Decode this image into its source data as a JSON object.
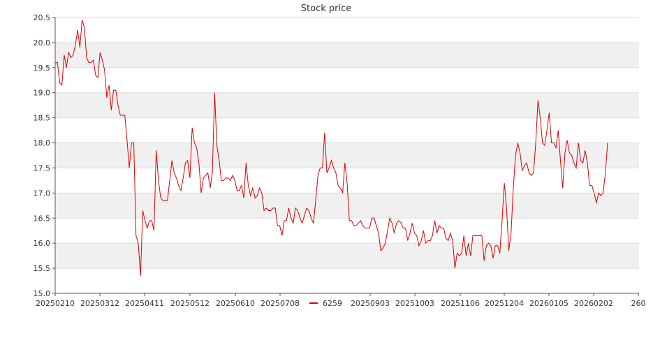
{
  "chart_data": {
    "type": "line",
    "title": "Stock price",
    "xlabel": "",
    "ylabel": "",
    "ylim": [
      15.0,
      20.5
    ],
    "yticks": [
      "15.0",
      "15.5",
      "16.0",
      "16.5",
      "17.0",
      "17.5",
      "18.0",
      "18.5",
      "19.0",
      "19.5",
      "20.0",
      "20.5"
    ],
    "xtick_labels": [
      "20250210",
      "20250312",
      "20250411",
      "20250512",
      "20250610",
      "20250708",
      "20250903",
      "20251003",
      "20251106",
      "20251204",
      "20260105",
      "20260202",
      "260"
    ],
    "grid": true,
    "banded_background": true,
    "legend_position": "bottom",
    "colors": {
      "line": "#dd0000",
      "band": "#f0f0f0",
      "grid": "#dddddd",
      "axis": "#555555"
    },
    "series": [
      {
        "name": "6259",
        "values": [
          19.6,
          19.6,
          19.2,
          19.15,
          19.75,
          19.5,
          19.8,
          19.7,
          19.75,
          19.95,
          20.25,
          19.9,
          20.45,
          20.3,
          19.7,
          19.6,
          19.6,
          19.65,
          19.35,
          19.3,
          19.8,
          19.65,
          19.45,
          18.9,
          19.15,
          18.65,
          19.05,
          19.05,
          18.75,
          18.55,
          18.55,
          18.55,
          18.05,
          17.5,
          18.0,
          18.0,
          16.15,
          16.0,
          15.35,
          16.65,
          16.45,
          16.3,
          16.45,
          16.45,
          16.25,
          17.85,
          17.25,
          16.9,
          16.85,
          16.85,
          16.85,
          17.25,
          17.65,
          17.4,
          17.3,
          17.15,
          17.05,
          17.3,
          17.6,
          17.65,
          17.3,
          18.3,
          18.0,
          17.9,
          17.6,
          17.0,
          17.3,
          17.35,
          17.4,
          17.1,
          17.4,
          19.0,
          17.95,
          17.65,
          17.25,
          17.25,
          17.3,
          17.3,
          17.25,
          17.35,
          17.25,
          17.05,
          17.05,
          17.15,
          16.9,
          17.6,
          17.15,
          16.95,
          17.1,
          16.9,
          16.95,
          17.1,
          17.0,
          16.65,
          16.7,
          16.65,
          16.65,
          16.7,
          16.7,
          16.35,
          16.35,
          16.15,
          16.45,
          16.45,
          16.7,
          16.5,
          16.4,
          16.7,
          16.65,
          16.5,
          16.4,
          16.55,
          16.7,
          16.65,
          16.5,
          16.4,
          16.85,
          17.35,
          17.5,
          17.5,
          18.2,
          17.4,
          17.5,
          17.65,
          17.5,
          17.4,
          17.15,
          17.1,
          17.0,
          17.6,
          17.2,
          16.45,
          16.45,
          16.35,
          16.35,
          16.4,
          16.45,
          16.35,
          16.3,
          16.3,
          16.3,
          16.5,
          16.5,
          16.35,
          16.2,
          15.85,
          15.9,
          16.0,
          16.25,
          16.5,
          16.4,
          16.2,
          16.4,
          16.45,
          16.4,
          16.3,
          16.3,
          16.05,
          16.2,
          16.4,
          16.2,
          16.15,
          15.95,
          16.05,
          16.25,
          16.0,
          16.05,
          16.05,
          16.15,
          16.45,
          16.2,
          16.35,
          16.3,
          16.3,
          16.1,
          16.05,
          16.2,
          16.05,
          15.5,
          15.8,
          15.75,
          15.8,
          16.15,
          15.75,
          16.0,
          15.75,
          16.15,
          16.15,
          16.15,
          16.15,
          16.15,
          15.65,
          15.95,
          16.0,
          15.95,
          15.7,
          15.95,
          15.95,
          15.8,
          16.45,
          17.2,
          16.7,
          15.85,
          16.2,
          17.1,
          17.75,
          18.0,
          17.8,
          17.45,
          17.55,
          17.6,
          17.4,
          17.35,
          17.4,
          18.0,
          18.85,
          18.5,
          18.0,
          17.95,
          18.25,
          18.6,
          18.0,
          18.0,
          17.9,
          18.25,
          17.65,
          17.1,
          17.8,
          18.05,
          17.8,
          17.75,
          17.6,
          17.5,
          18.0,
          17.65,
          17.6,
          17.85,
          17.6,
          17.15,
          17.15,
          17.0,
          16.8,
          17.0,
          16.95,
          17.0,
          17.4,
          18.0
        ]
      }
    ]
  }
}
